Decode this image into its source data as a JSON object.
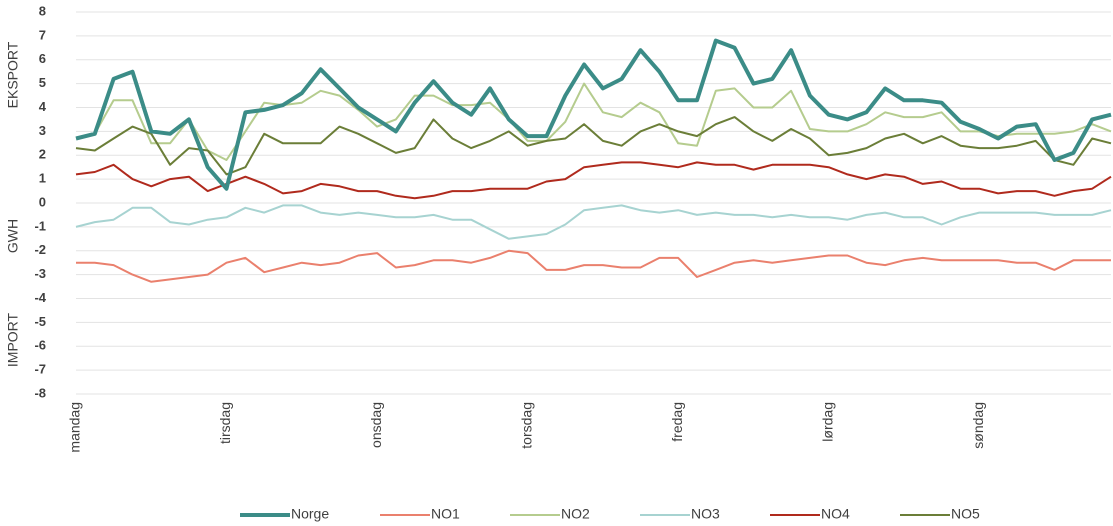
{
  "chart_data": {
    "type": "line",
    "annotations": [
      "EKSPORT",
      "GWH",
      "IMPORT"
    ],
    "categories": [
      "mandag",
      null,
      null,
      null,
      null,
      null,
      null,
      null,
      "tirsdag",
      null,
      null,
      null,
      null,
      null,
      null,
      null,
      "onsdag",
      null,
      null,
      null,
      null,
      null,
      null,
      null,
      "torsdag",
      null,
      null,
      null,
      null,
      null,
      null,
      null,
      "fredag",
      null,
      null,
      null,
      null,
      null,
      null,
      null,
      "lørdag",
      null,
      null,
      null,
      null,
      null,
      null,
      null,
      "søndag",
      null,
      null,
      null,
      null,
      null,
      null,
      null
    ],
    "ylim": [
      -8,
      8
    ],
    "yticks": [
      -8,
      -7,
      -6,
      -5,
      -4,
      -3,
      -2,
      -1,
      0,
      1,
      2,
      3,
      4,
      5,
      6,
      7,
      8
    ],
    "grid": true,
    "legend": "bottom",
    "series": [
      {
        "name": "Norge",
        "color": "#3b8c87",
        "values": [
          2.7,
          2.9,
          5.2,
          5.5,
          3.0,
          2.9,
          3.5,
          1.5,
          0.6,
          3.8,
          3.9,
          4.1,
          4.6,
          5.6,
          4.8,
          4.0,
          3.5,
          3.0,
          4.2,
          5.1,
          4.2,
          3.7,
          4.8,
          3.5,
          2.8,
          2.8,
          4.5,
          5.8,
          4.8,
          5.2,
          6.4,
          5.5,
          4.3,
          4.3,
          6.8,
          6.5,
          5.0,
          5.2,
          6.4,
          4.5,
          3.7,
          3.5,
          3.8,
          4.8,
          4.3,
          4.3,
          4.2,
          3.4,
          3.1,
          2.7,
          3.2,
          3.3,
          1.8,
          2.1,
          3.5,
          3.7
        ]
      },
      {
        "name": "NO1",
        "color": "#ea806d",
        "values": [
          -2.5,
          -2.5,
          -2.6,
          -3.0,
          -3.3,
          -3.2,
          -3.1,
          -3.0,
          -2.5,
          -2.3,
          -2.9,
          -2.7,
          -2.5,
          -2.6,
          -2.5,
          -2.2,
          -2.1,
          -2.7,
          -2.6,
          -2.4,
          -2.4,
          -2.5,
          -2.3,
          -2.0,
          -2.1,
          -2.8,
          -2.8,
          -2.6,
          -2.6,
          -2.7,
          -2.7,
          -2.3,
          -2.3,
          -3.1,
          -2.8,
          -2.5,
          -2.4,
          -2.5,
          -2.4,
          -2.3,
          -2.2,
          -2.2,
          -2.5,
          -2.6,
          -2.4,
          -2.3,
          -2.4,
          -2.4,
          -2.4,
          -2.4,
          -2.5,
          -2.5,
          -2.8,
          -2.4,
          -2.4,
          -2.4
        ]
      },
      {
        "name": "NO2",
        "color": "#b5cc8e",
        "values": [
          2.7,
          2.9,
          4.3,
          4.3,
          2.5,
          2.5,
          3.5,
          2.2,
          1.8,
          3.0,
          4.2,
          4.1,
          4.2,
          4.7,
          4.5,
          3.9,
          3.2,
          3.5,
          4.5,
          4.5,
          4.1,
          4.1,
          4.2,
          3.5,
          2.6,
          2.6,
          3.4,
          5.0,
          3.8,
          3.6,
          4.2,
          3.8,
          2.5,
          2.4,
          4.7,
          4.8,
          4.0,
          4.0,
          4.7,
          3.1,
          3.0,
          3.0,
          3.3,
          3.8,
          3.6,
          3.6,
          3.8,
          3.0,
          3.0,
          2.8,
          2.9,
          2.9,
          2.9,
          3.0,
          3.3,
          3.0
        ]
      },
      {
        "name": "NO3",
        "color": "#a7d3d1",
        "values": [
          -1.0,
          -0.8,
          -0.7,
          -0.2,
          -0.2,
          -0.8,
          -0.9,
          -0.7,
          -0.6,
          -0.2,
          -0.4,
          -0.1,
          -0.1,
          -0.4,
          -0.5,
          -0.4,
          -0.5,
          -0.6,
          -0.6,
          -0.5,
          -0.7,
          -0.7,
          -1.1,
          -1.5,
          -1.4,
          -1.3,
          -0.9,
          -0.3,
          -0.2,
          -0.1,
          -0.3,
          -0.4,
          -0.3,
          -0.5,
          -0.4,
          -0.5,
          -0.5,
          -0.6,
          -0.5,
          -0.6,
          -0.6,
          -0.7,
          -0.5,
          -0.4,
          -0.6,
          -0.6,
          -0.9,
          -0.6,
          -0.4,
          -0.4,
          -0.4,
          -0.4,
          -0.5,
          -0.5,
          -0.5,
          -0.3
        ]
      },
      {
        "name": "NO4",
        "color": "#b02a1d",
        "values": [
          1.2,
          1.3,
          1.6,
          1.0,
          0.7,
          1.0,
          1.1,
          0.5,
          0.8,
          1.1,
          0.8,
          0.4,
          0.5,
          0.8,
          0.7,
          0.5,
          0.5,
          0.3,
          0.2,
          0.3,
          0.5,
          0.5,
          0.6,
          0.6,
          0.6,
          0.9,
          1.0,
          1.5,
          1.6,
          1.7,
          1.7,
          1.6,
          1.5,
          1.7,
          1.6,
          1.6,
          1.4,
          1.6,
          1.6,
          1.6,
          1.5,
          1.2,
          1.0,
          1.2,
          1.1,
          0.8,
          0.9,
          0.6,
          0.6,
          0.4,
          0.5,
          0.5,
          0.3,
          0.5,
          0.6,
          1.1
        ]
      },
      {
        "name": "NO5",
        "color": "#6b7e38",
        "values": [
          2.3,
          2.2,
          2.7,
          3.2,
          2.9,
          1.6,
          2.3,
          2.2,
          1.2,
          1.5,
          2.9,
          2.5,
          2.5,
          2.5,
          3.2,
          2.9,
          2.5,
          2.1,
          2.3,
          3.5,
          2.7,
          2.3,
          2.6,
          3.0,
          2.4,
          2.6,
          2.7,
          3.3,
          2.6,
          2.4,
          3.0,
          3.3,
          3.0,
          2.8,
          3.3,
          3.6,
          3.0,
          2.6,
          3.1,
          2.7,
          2.0,
          2.1,
          2.3,
          2.7,
          2.9,
          2.5,
          2.8,
          2.4,
          2.3,
          2.3,
          2.4,
          2.6,
          1.8,
          1.6,
          2.7,
          2.5
        ]
      }
    ]
  }
}
